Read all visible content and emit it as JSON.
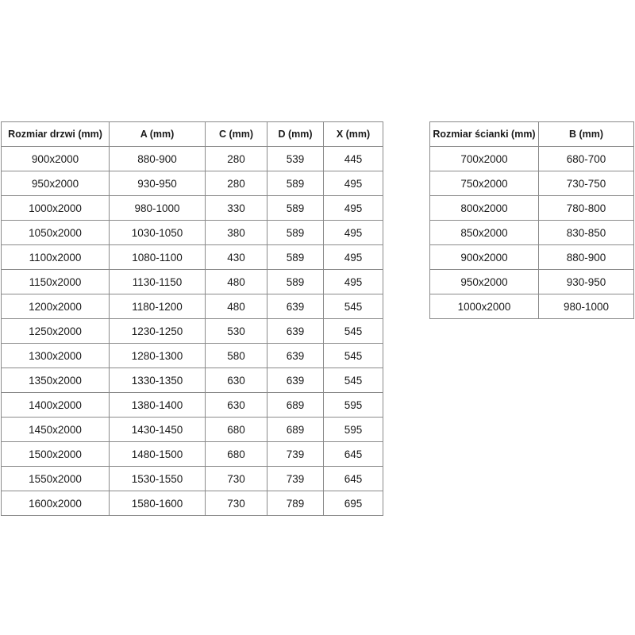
{
  "doors_table": {
    "headers": [
      "Rozmiar drzwi (mm)",
      "A (mm)",
      "C (mm)",
      "D (mm)",
      "X (mm)"
    ],
    "rows": [
      [
        "900x2000",
        "880-900",
        "280",
        "539",
        "445"
      ],
      [
        "950x2000",
        "930-950",
        "280",
        "589",
        "495"
      ],
      [
        "1000x2000",
        "980-1000",
        "330",
        "589",
        "495"
      ],
      [
        "1050x2000",
        "1030-1050",
        "380",
        "589",
        "495"
      ],
      [
        "1100x2000",
        "1080-1100",
        "430",
        "589",
        "495"
      ],
      [
        "1150x2000",
        "1130-1150",
        "480",
        "589",
        "495"
      ],
      [
        "1200x2000",
        "1180-1200",
        "480",
        "639",
        "545"
      ],
      [
        "1250x2000",
        "1230-1250",
        "530",
        "639",
        "545"
      ],
      [
        "1300x2000",
        "1280-1300",
        "580",
        "639",
        "545"
      ],
      [
        "1350x2000",
        "1330-1350",
        "630",
        "639",
        "545"
      ],
      [
        "1400x2000",
        "1380-1400",
        "630",
        "689",
        "595"
      ],
      [
        "1450x2000",
        "1430-1450",
        "680",
        "689",
        "595"
      ],
      [
        "1500x2000",
        "1480-1500",
        "680",
        "739",
        "645"
      ],
      [
        "1550x2000",
        "1530-1550",
        "730",
        "739",
        "645"
      ],
      [
        "1600x2000",
        "1580-1600",
        "730",
        "789",
        "695"
      ]
    ]
  },
  "wall_table": {
    "headers": [
      "Rozmiar ścianki (mm)",
      "B (mm)"
    ],
    "rows": [
      [
        "700x2000",
        "680-700"
      ],
      [
        "750x2000",
        "730-750"
      ],
      [
        "800x2000",
        "780-800"
      ],
      [
        "850x2000",
        "830-850"
      ],
      [
        "900x2000",
        "880-900"
      ],
      [
        "950x2000",
        "930-950"
      ],
      [
        "1000x2000",
        "980-1000"
      ]
    ]
  }
}
